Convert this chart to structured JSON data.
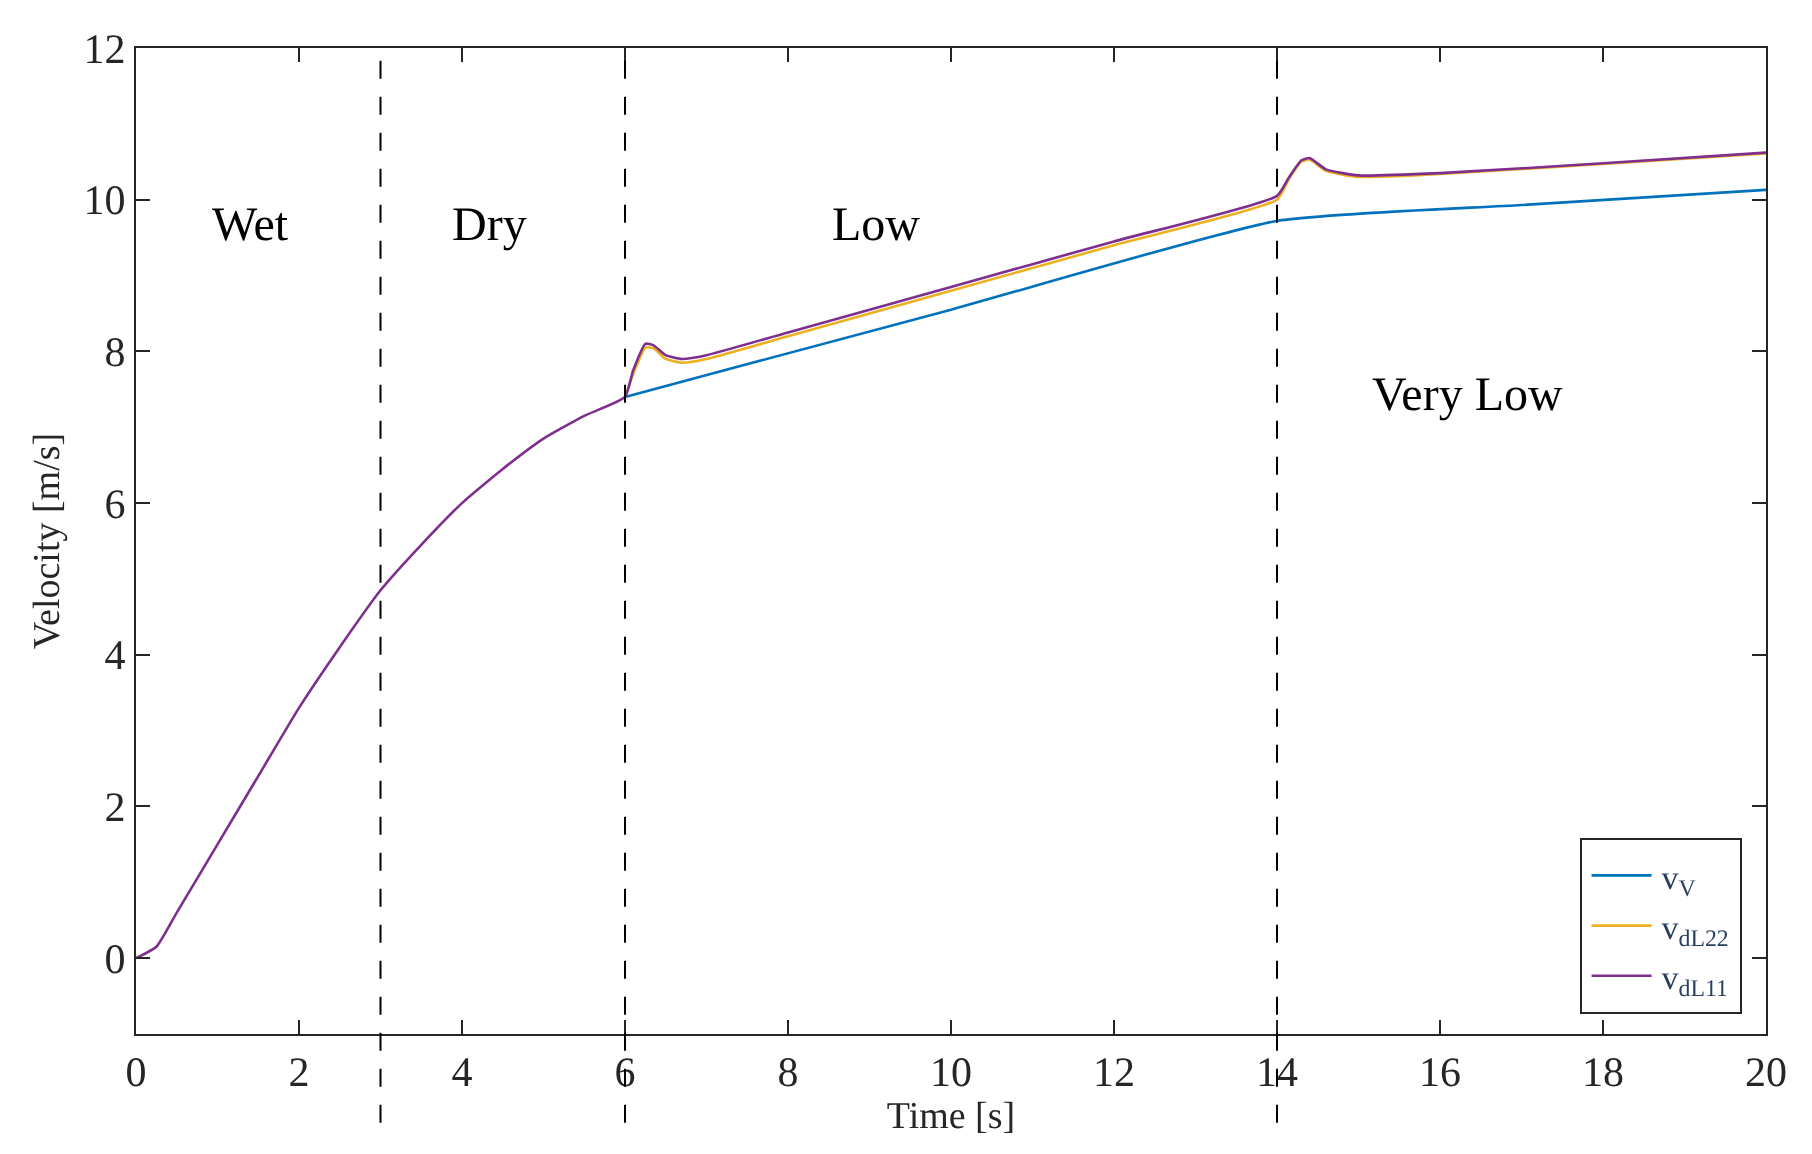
{
  "chart_data": {
    "type": "line",
    "xlabel": "Time [s]",
    "ylabel": "Velocity [m/s]",
    "xlim": [
      0,
      20
    ],
    "xticks": [
      0,
      2,
      4,
      6,
      8,
      10,
      12,
      14,
      16,
      18,
      20
    ],
    "ylim": [
      -1,
      12
    ],
    "yticks": [
      0,
      2,
      4,
      6,
      8,
      10,
      12
    ],
    "legend": "bottom right",
    "marker": "none",
    "line_style": "solid",
    "series": [
      {
        "name": "v$_{V}$",
        "color": "#0072bd",
        "x": [
          6,
          10,
          14,
          17,
          20
        ],
        "values": [
          7.4,
          8.55,
          9.72,
          9.93,
          10.13
        ]
      },
      {
        "name": "v$_{dL22}$",
        "color": "#edb120",
        "x": [
          6,
          6.1,
          6.25,
          6.35,
          6.5,
          6.7,
          7,
          8,
          10,
          12,
          14,
          14.15,
          14.3,
          14.4,
          14.6,
          15,
          16,
          18,
          20
        ],
        "values": [
          7.4,
          7.7,
          8.05,
          8.04,
          7.9,
          7.85,
          7.9,
          8.2,
          8.8,
          9.4,
          10.0,
          10.28,
          10.5,
          10.53,
          10.38,
          10.3,
          10.34,
          10.47,
          10.61
        ]
      },
      {
        "name": "v$_{dL11}$",
        "color": "#7e2f8e",
        "x": [
          0,
          0.25,
          0.5,
          1,
          1.5,
          2,
          2.5,
          3,
          3.5,
          4,
          4.5,
          5,
          5.5,
          6,
          6.1,
          6.25,
          6.35,
          6.5,
          6.7,
          7,
          8,
          10,
          12,
          14,
          14.15,
          14.3,
          14.4,
          14.6,
          15,
          16,
          18,
          20
        ],
        "values": [
          0,
          0.15,
          0.6,
          1.5,
          2.4,
          3.3,
          4.1,
          4.85,
          5.45,
          6.0,
          6.45,
          6.85,
          7.15,
          7.4,
          7.75,
          8.1,
          8.08,
          7.95,
          7.9,
          7.95,
          8.25,
          8.85,
          9.45,
          10.05,
          10.3,
          10.52,
          10.55,
          10.4,
          10.32,
          10.35,
          10.48,
          10.62
        ]
      }
    ],
    "ref_lines": [
      {
        "axis": "x",
        "value": 3,
        "color": "#000000",
        "line_style": "dashed"
      },
      {
        "axis": "x",
        "value": 6,
        "color": "#000000",
        "line_style": "dashed"
      },
      {
        "axis": "x",
        "value": 14,
        "color": "#000000",
        "line_style": "dashed"
      }
    ],
    "annotations": [
      "Wet",
      "Dry",
      "Low",
      "Very Low"
    ]
  }
}
